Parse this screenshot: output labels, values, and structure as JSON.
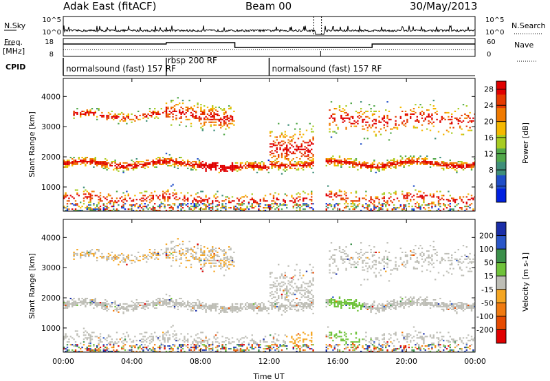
{
  "header": {
    "radar": "Adak East (fitACF)",
    "beam": "Beam 00",
    "date": "30/May/2013"
  },
  "colors": {
    "power_scale": [
      "#0020e0",
      "#1f4ec8",
      "#3f8f7a",
      "#52a84a",
      "#a7cc22",
      "#f5b800",
      "#f07a00",
      "#e63a00",
      "#e00000"
    ],
    "velocity_scale": [
      "#1a2ea8",
      "#2a56c8",
      "#3b8f4a",
      "#6fc23a",
      "#bebeb6",
      "#f5a623",
      "#f07a10",
      "#e64a00",
      "#e00000"
    ]
  },
  "top_panels": {
    "nsky_label": "N.Sky",
    "nsearch_label": "N.Search",
    "nsky_ticks": [
      "10^5",
      "10^0"
    ],
    "freq_label_1": "Freq.",
    "freq_label_2": "[MHz]",
    "freq_ticks": [
      "18",
      "8"
    ],
    "nave_label": "Nave",
    "nave_ticks": [
      "60",
      "0"
    ],
    "cpid_label": "CPID",
    "cpid_segments": [
      {
        "label": "normalsound (fast) 157 RF",
        "start": 0.0,
        "end": 6.0
      },
      {
        "label": "rbsp 200 RF",
        "start": 6.0,
        "end": 12.0
      },
      {
        "label": "normalsound (fast) 157 RF",
        "start": 12.0,
        "end": 24.0
      }
    ]
  },
  "chart_data": [
    {
      "type": "heatmap",
      "panel": "power",
      "ylabel": "Slant Range [km]",
      "xlabel": "",
      "xlim": [
        0,
        24
      ],
      "ylim": [
        200,
        4600
      ],
      "yticks": [
        "1000",
        "2000",
        "3000",
        "4000"
      ],
      "colorbar": {
        "label": "Power [dB]",
        "ticks": [
          "4",
          "8",
          "12",
          "16",
          "20",
          "24",
          "28"
        ],
        "range": [
          0,
          30
        ]
      }
    },
    {
      "type": "heatmap",
      "panel": "velocity",
      "ylabel": "Slant Range [km]",
      "xlabel": "Time UT",
      "xlim": [
        0,
        24
      ],
      "ylim": [
        200,
        4600
      ],
      "yticks": [
        "1000",
        "2000",
        "3000",
        "4000"
      ],
      "xticks": [
        "00:00",
        "04:00",
        "08:00",
        "12:00",
        "16:00",
        "20:00",
        "00:00"
      ],
      "colorbar": {
        "label": "Velocity [m s-1]",
        "ticks": [
          "200",
          "100",
          "50",
          "15",
          "-15",
          "-50",
          "-100",
          "-200"
        ]
      }
    }
  ]
}
